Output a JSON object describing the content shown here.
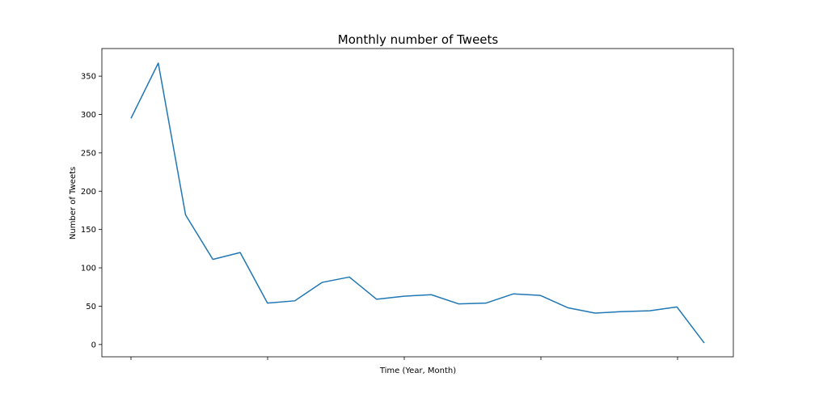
{
  "chart_data": {
    "type": "line",
    "title": "Monthly number of Tweets",
    "xlabel": "Time (Year, Month)",
    "ylabel": "Number of Tweets",
    "ylim": [
      -16,
      386
    ],
    "y_ticks": [
      0,
      50,
      100,
      150,
      200,
      250,
      300,
      350
    ],
    "x_tick_count": 5,
    "grid": false,
    "legend": "none",
    "series": [
      {
        "color": "#1f77b4",
        "values": [
          295,
          367,
          169,
          111,
          120,
          54,
          57,
          81,
          88,
          59,
          63,
          65,
          53,
          54,
          66,
          64,
          48,
          41,
          43,
          44,
          49,
          2
        ]
      }
    ]
  }
}
